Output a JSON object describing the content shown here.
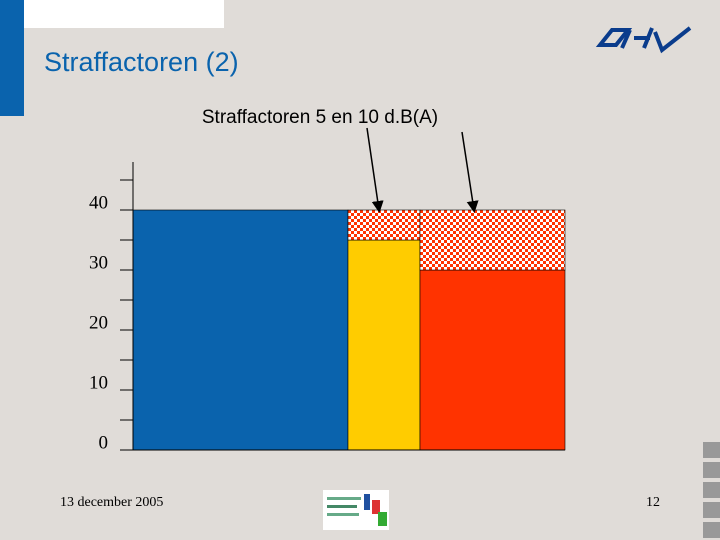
{
  "slide_title": "Straffactoren (2)",
  "footer": {
    "date": "13 december 2005",
    "page": "12"
  },
  "chart_data": {
    "type": "bar",
    "title": "Straffactoren 5 en 10 d.B(A)",
    "categories": [
      null,
      null,
      null
    ],
    "series": [
      {
        "colors": [
          "#0a63ad",
          "#ffcc00",
          "#ff3300"
        ],
        "values": [
          40,
          35,
          30
        ]
      },
      {
        "color": "#ff3300",
        "pattern": "checker",
        "values": [
          null,
          5,
          10
        ]
      }
    ],
    "ylim": [
      0,
      48
    ],
    "yticks": [
      0,
      10,
      20,
      30,
      40
    ],
    "minor_yticks": [
      5,
      15,
      25,
      35,
      45
    ]
  }
}
